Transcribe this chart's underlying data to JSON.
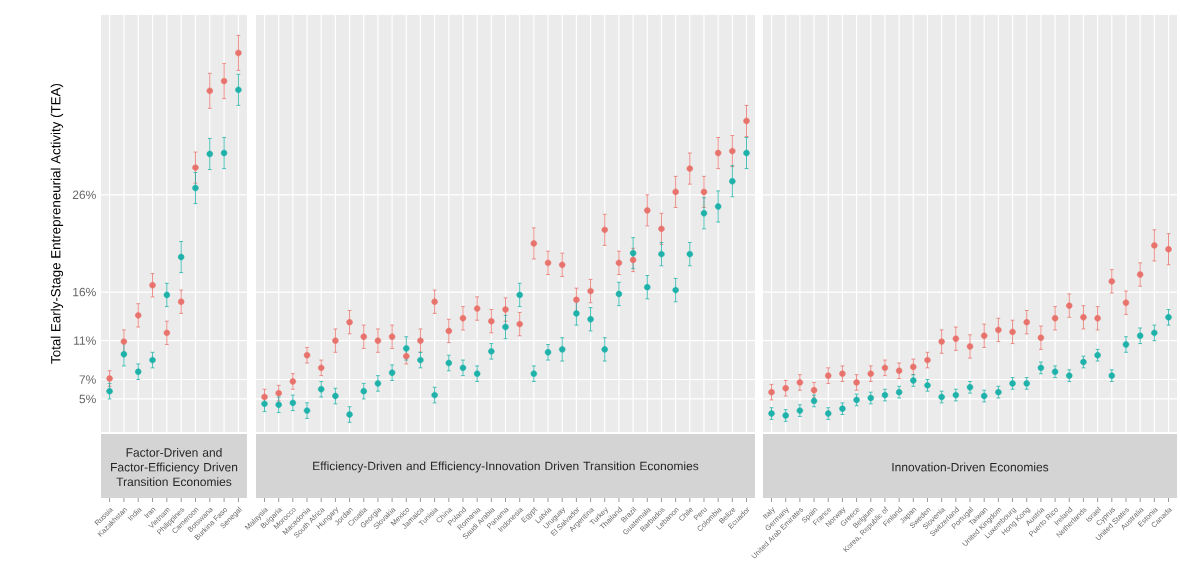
{
  "chart_data": [
    {
      "type": "scatter",
      "title": "Factor-Driven and Factor-Efficiency Driven Transition Economies",
      "ylabel": "Total Early-Stage Entrepreneurial Activity (TEA)",
      "categories": [
        "Russia",
        "Kazakhstan",
        "India",
        "Iran",
        "Vietnam",
        "Philippines",
        "Cameroon",
        "Botswana",
        "Burkina Faso",
        "Senegal"
      ],
      "series": [
        {
          "color": "#e8736c",
          "values": [
            7.1,
            10.9,
            13.6,
            16.7,
            11.8,
            15.0,
            28.8,
            36.7,
            37.7,
            40.6
          ],
          "errors": [
            0.8,
            1.2,
            1.2,
            1.2,
            1.2,
            1.2,
            1.6,
            1.8,
            1.8,
            1.8
          ]
        },
        {
          "color": "#1fb2aa",
          "values": [
            5.8,
            9.6,
            7.8,
            9.0,
            15.7,
            19.6,
            26.7,
            30.2,
            30.3,
            36.8
          ],
          "errors": [
            0.8,
            1.2,
            0.8,
            0.8,
            1.2,
            1.6,
            1.6,
            1.6,
            1.6,
            1.6
          ]
        }
      ],
      "ylim": [
        1.6,
        44.5
      ],
      "yticks": [
        {
          "value": 5,
          "label": "5%"
        },
        {
          "value": 7,
          "label": "7%"
        },
        {
          "value": 11,
          "label": "11%"
        },
        {
          "value": 16,
          "label": "16%"
        },
        {
          "value": 26,
          "label": "26%"
        }
      ],
      "grid": true,
      "marker": "circle"
    },
    {
      "type": "scatter",
      "title": "Efficiency-Driven and Efficiency-Innovation Driven Transition Economies",
      "categories": [
        "Malaysia",
        "Bulgaria",
        "Morocco",
        "Macedonia",
        "South Africa",
        "Hungary",
        "Jordan",
        "Croatia",
        "Georgia",
        "Slovakia",
        "Mexico",
        "Jamaica",
        "Tunisia",
        "China",
        "Poland",
        "Romania",
        "Saudi Arabia",
        "Panama",
        "Indonesia",
        "Egypt",
        "Latvia",
        "Uruguay",
        "El Salvador",
        "Argentina",
        "Turkey",
        "Thailand",
        "Brazil",
        "Guatemala",
        "Barbados",
        "Lebanon",
        "Chile",
        "Peru",
        "Colombia",
        "Belize",
        "Ecuador"
      ],
      "series": [
        {
          "color": "#e8736c",
          "values": [
            5.2,
            5.6,
            6.8,
            9.5,
            8.2,
            11.0,
            12.9,
            11.4,
            11.0,
            11.4,
            9.4,
            11.0,
            15.0,
            12.0,
            13.3,
            14.3,
            13.0,
            14.2,
            12.7,
            21.0,
            19.0,
            18.8,
            15.2,
            16.1,
            22.4,
            19.0,
            19.3,
            24.4,
            22.5,
            26.3,
            28.7,
            26.3,
            30.3,
            30.5,
            33.6
          ],
          "errors": [
            0.8,
            0.8,
            0.8,
            0.8,
            0.8,
            1.2,
            1.2,
            1.2,
            1.2,
            1.2,
            0.8,
            1.2,
            1.2,
            1.2,
            1.2,
            1.2,
            1.2,
            1.2,
            1.2,
            1.6,
            1.2,
            1.2,
            1.2,
            1.2,
            1.6,
            1.2,
            1.2,
            1.6,
            1.6,
            1.6,
            1.6,
            1.6,
            1.6,
            1.6,
            1.6
          ]
        },
        {
          "color": "#1fb2aa",
          "values": [
            4.5,
            4.4,
            4.6,
            3.8,
            6.0,
            5.3,
            3.4,
            5.8,
            6.6,
            7.7,
            10.2,
            9.0,
            5.4,
            8.7,
            8.2,
            7.6,
            9.9,
            12.4,
            15.7,
            7.6,
            9.8,
            10.1,
            13.8,
            13.2,
            10.1,
            15.8,
            20.0,
            16.5,
            19.9,
            16.2,
            19.9,
            24.1,
            24.8,
            27.4,
            30.3
          ],
          "errors": [
            0.8,
            0.8,
            0.8,
            0.8,
            0.8,
            0.8,
            0.8,
            0.8,
            0.8,
            0.8,
            1.2,
            0.8,
            0.8,
            0.8,
            0.8,
            0.8,
            0.8,
            1.2,
            1.2,
            0.8,
            0.8,
            1.2,
            1.2,
            1.2,
            1.2,
            1.2,
            1.6,
            1.2,
            1.2,
            1.2,
            1.2,
            1.6,
            1.6,
            1.6,
            1.6
          ]
        }
      ],
      "ylim": [
        1.6,
        44.5
      ],
      "yticks": [
        {
          "value": 5,
          "label": null
        },
        {
          "value": 7,
          "label": null
        },
        {
          "value": 11,
          "label": null
        },
        {
          "value": 16,
          "label": null
        },
        {
          "value": 26,
          "label": null
        }
      ],
      "tick_labels": "x",
      "grid": true,
      "marker": "circle"
    },
    {
      "type": "scatter",
      "title": "Innovation-Driven Economies",
      "categories": [
        "Italy",
        "Germany",
        "United Arab Emirates",
        "Spain",
        "France",
        "Norway",
        "Greece",
        "Belgium",
        "Korea, Republic of",
        "Finland",
        "Japan",
        "Sweden",
        "Slovenia",
        "Switzerland",
        "Portugal",
        "Taiwan",
        "United Kingdom",
        "Luxembourg",
        "Hong Kong",
        "Austria",
        "Puerto Rico",
        "Ireland",
        "Netherlands",
        "Israel",
        "Cyprus",
        "United States",
        "Australia",
        "Estonia",
        "Canada"
      ],
      "series": [
        {
          "color": "#e8736c",
          "values": [
            5.7,
            6.1,
            6.7,
            5.9,
            7.4,
            7.6,
            6.7,
            7.6,
            8.2,
            7.9,
            8.3,
            9.0,
            10.9,
            11.2,
            10.4,
            11.5,
            12.1,
            11.9,
            12.9,
            11.3,
            13.3,
            14.6,
            13.4,
            13.3,
            17.1,
            14.9,
            17.8,
            20.8,
            20.4
          ],
          "errors": [
            0.8,
            0.8,
            0.8,
            0.8,
            0.8,
            0.8,
            0.8,
            0.8,
            0.8,
            0.8,
            0.8,
            0.8,
            1.2,
            1.2,
            1.2,
            1.2,
            1.2,
            1.2,
            1.2,
            1.2,
            1.2,
            1.2,
            1.2,
            1.2,
            1.2,
            1.2,
            1.2,
            1.6,
            1.6
          ]
        },
        {
          "color": "#1fb2aa",
          "values": [
            3.5,
            3.3,
            3.8,
            4.8,
            3.5,
            4.0,
            4.9,
            5.1,
            5.4,
            5.7,
            6.9,
            6.4,
            5.2,
            5.4,
            6.2,
            5.3,
            5.7,
            6.6,
            6.6,
            8.2,
            7.8,
            7.4,
            8.8,
            9.5,
            7.4,
            10.6,
            11.5,
            11.8,
            13.4
          ],
          "errors": [
            0.6,
            0.6,
            0.6,
            0.6,
            0.6,
            0.6,
            0.6,
            0.6,
            0.6,
            0.6,
            0.6,
            0.6,
            0.6,
            0.6,
            0.6,
            0.6,
            0.6,
            0.6,
            0.6,
            0.6,
            0.6,
            0.6,
            0.6,
            0.6,
            0.6,
            0.8,
            0.8,
            0.8,
            0.8
          ]
        }
      ],
      "ylim": [
        1.6,
        44.5
      ],
      "yticks": [
        {
          "value": 5,
          "label": null
        },
        {
          "value": 7,
          "label": null
        },
        {
          "value": 11,
          "label": null
        },
        {
          "value": 16,
          "label": null
        },
        {
          "value": 26,
          "label": null
        }
      ],
      "tick_labels": "x",
      "grid": true,
      "marker": "circle"
    }
  ]
}
